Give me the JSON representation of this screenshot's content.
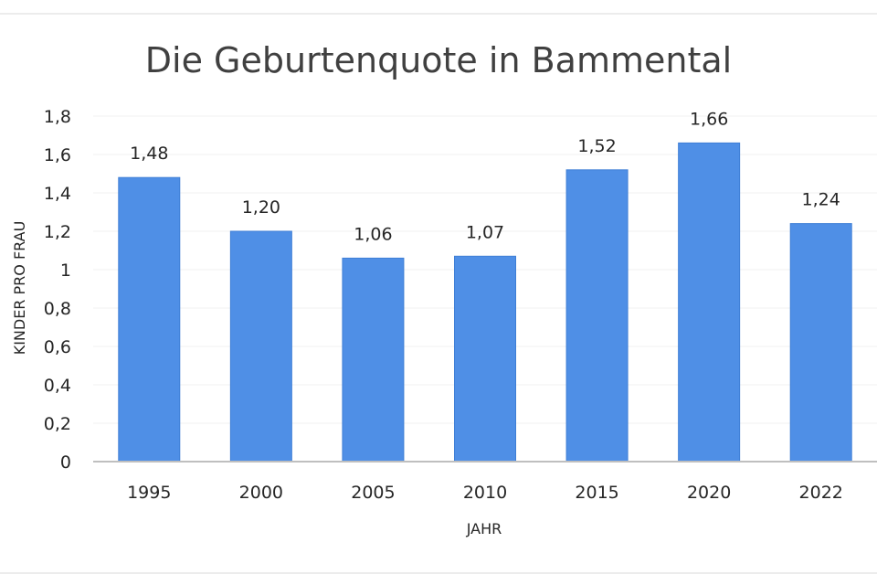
{
  "chart_data": {
    "type": "bar",
    "title": "Die Geburtenquote in Bammental",
    "xlabel": "JAHR",
    "ylabel": "KINDER PRO FRAU",
    "categories": [
      "1995",
      "2000",
      "2005",
      "2010",
      "2015",
      "2020",
      "2022"
    ],
    "values": [
      1.48,
      1.2,
      1.06,
      1.07,
      1.52,
      1.66,
      1.24
    ],
    "data_labels": [
      "1,48",
      "1,20",
      "1,06",
      "1,07",
      "1,52",
      "1,66",
      "1,24"
    ],
    "yticks": [
      {
        "value": 0,
        "label": "0"
      },
      {
        "value": 0.2,
        "label": "0,2"
      },
      {
        "value": 0.4,
        "label": "0,4"
      },
      {
        "value": 0.6,
        "label": "0,6"
      },
      {
        "value": 0.8,
        "label": "0,8"
      },
      {
        "value": 1.0,
        "label": "1"
      },
      {
        "value": 1.2,
        "label": "1,2"
      },
      {
        "value": 1.4,
        "label": "1,4"
      },
      {
        "value": 1.6,
        "label": "1,6"
      },
      {
        "value": 1.8,
        "label": "1,8"
      }
    ],
    "ylim": [
      0,
      1.8
    ],
    "grid": true,
    "legend": "none",
    "colors": {
      "bar": "#4f8fe6",
      "bar_edge": "#3f7fd6",
      "grid": "#f0f0f0",
      "axis": "#bfbfbf"
    }
  }
}
